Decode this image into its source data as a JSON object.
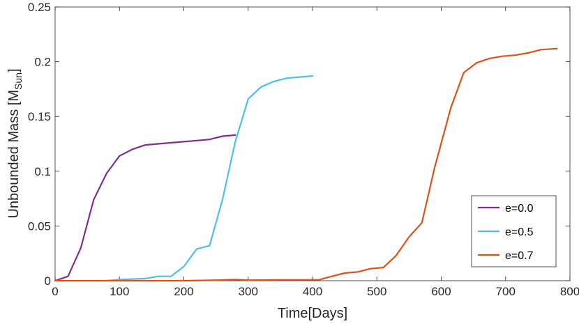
{
  "chart_data": {
    "type": "line",
    "xlabel": "Time[Days]",
    "ylabel": {
      "main": "Unbounded Mass [M",
      "sub": "Sun",
      "close": "]"
    },
    "xlim": [
      0,
      800
    ],
    "ylim": [
      0,
      0.25
    ],
    "xticks": [
      0,
      100,
      200,
      300,
      400,
      500,
      600,
      700,
      800
    ],
    "xtick_labels": [
      "0",
      "100",
      "200",
      "300",
      "400",
      "500",
      "600",
      "700",
      "800"
    ],
    "yticks": [
      0,
      0.05,
      0.1,
      0.15,
      0.2,
      0.25
    ],
    "ytick_labels": [
      "0",
      "0.05",
      "0.1",
      "0.15",
      "0.2",
      "0.25"
    ],
    "grid": false,
    "legend_position": "bottom-right",
    "series": [
      {
        "name": "e=0.0",
        "color": "#7E2F8E",
        "x": [
          0,
          20,
          40,
          60,
          80,
          100,
          120,
          140,
          160,
          180,
          200,
          220,
          240,
          260,
          280
        ],
        "y": [
          0,
          0.004,
          0.03,
          0.074,
          0.098,
          0.114,
          0.12,
          0.124,
          0.125,
          0.126,
          0.127,
          0.128,
          0.129,
          0.132,
          0.133
        ]
      },
      {
        "name": "e=0.5",
        "color": "#4DBEEE",
        "x": [
          80,
          100,
          120,
          140,
          160,
          180,
          200,
          220,
          240,
          260,
          280,
          300,
          320,
          340,
          360,
          380,
          400
        ],
        "y": [
          0,
          0.001,
          0.0015,
          0.002,
          0.004,
          0.004,
          0.013,
          0.029,
          0.032,
          0.074,
          0.127,
          0.166,
          0.177,
          0.182,
          0.185,
          0.186,
          0.187
        ]
      },
      {
        "name": "e=0.7",
        "color": "#D95319",
        "x": [
          0,
          50,
          100,
          150,
          200,
          250,
          280,
          300,
          350,
          410,
          430,
          450,
          470,
          490,
          510,
          530,
          550,
          570,
          590,
          615,
          635,
          655,
          675,
          695,
          715,
          735,
          755,
          780
        ],
        "y": [
          0,
          0,
          0,
          0,
          0,
          0.0005,
          0.001,
          0.0005,
          0.0008,
          0.0008,
          0.004,
          0.007,
          0.008,
          0.011,
          0.012,
          0.023,
          0.04,
          0.053,
          0.104,
          0.158,
          0.19,
          0.199,
          0.203,
          0.205,
          0.206,
          0.208,
          0.211,
          0.212
        ]
      }
    ]
  }
}
